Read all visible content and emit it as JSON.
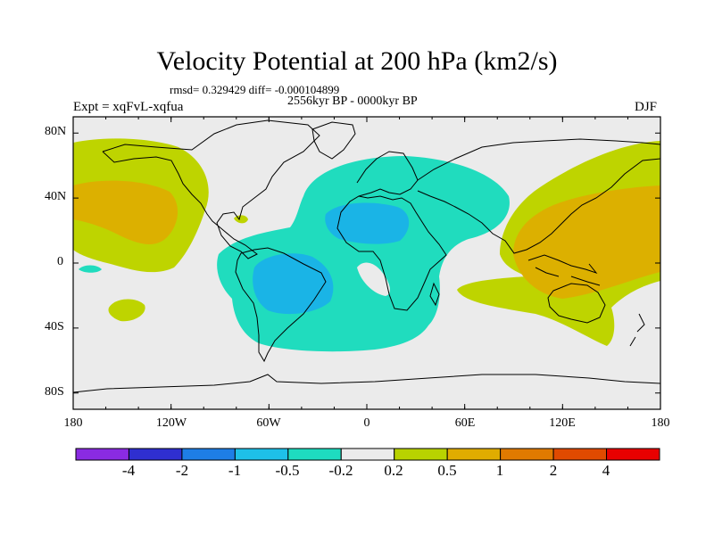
{
  "title": "Velocity Potential at 200 hPa (km2/s)",
  "stats": "rmsd= 0.329429 diff= -0.000104899",
  "period": "2556kyr BP - 0000kyr BP",
  "experiment": "Expt = xqFvL-xqfua",
  "season": "DJF",
  "axes": {
    "y_ticks": [
      "80N",
      "40N",
      "0",
      "40S",
      "80S"
    ],
    "x_ticks": [
      "180",
      "120W",
      "60W",
      "0",
      "60E",
      "120E",
      "180"
    ]
  },
  "colorbar": {
    "labels": [
      "-4",
      "-2",
      "-1",
      "-0.5",
      "-0.2",
      "0.2",
      "0.5",
      "1",
      "2",
      "4"
    ],
    "colors": [
      "#8a2be2",
      "#2f2fd0",
      "#1e7ee6",
      "#1ec0e8",
      "#1edcc0",
      "#ebebeb",
      "#b8d200",
      "#e0ac00",
      "#e07a00",
      "#e04a00",
      "#e80000"
    ]
  },
  "map_colors": {
    "land_background": "#ebebeb",
    "neg_light": "#20dcbe",
    "neg_mid": "#1ab4e6",
    "pos_light": "#bed400",
    "pos_mid": "#dcb000"
  }
}
